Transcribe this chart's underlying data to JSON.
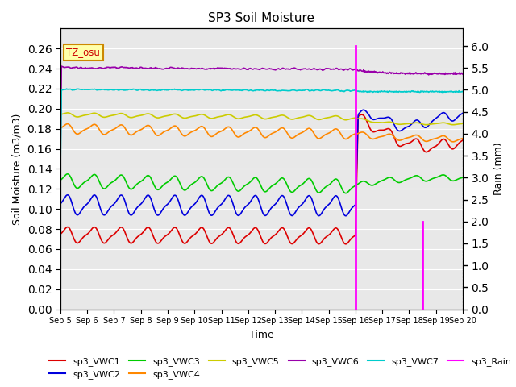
{
  "title": "SP3 Soil Moisture",
  "xlabel": "Time",
  "ylabel_left": "Soil Moisture (m3/m3)",
  "ylabel_right": "Rain (mm)",
  "ylim_left": [
    0.0,
    0.28
  ],
  "ylim_right": [
    0.0,
    6.4
  ],
  "yticks_left": [
    0.0,
    0.02,
    0.04,
    0.06,
    0.08,
    0.1,
    0.12,
    0.14,
    0.16,
    0.18,
    0.2,
    0.22,
    0.24,
    0.26
  ],
  "yticks_right": [
    0.0,
    0.5,
    1.0,
    1.5,
    2.0,
    2.5,
    3.0,
    3.5,
    4.0,
    4.5,
    5.0,
    5.5,
    6.0
  ],
  "xtick_labels": [
    "Sep 5",
    "Sep 6",
    "Sep 7",
    "Sep 8",
    "Sep 9",
    "Sep 10",
    "Sep 11",
    "Sep 12",
    "Sep 13",
    "Sep 14",
    "Sep 15",
    "Sep 16",
    "Sep 17",
    "Sep 18",
    "Sep 19",
    "Sep 20"
  ],
  "bg_color": "#e8e8e8",
  "colors": {
    "VWC1": "#dd0000",
    "VWC2": "#0000dd",
    "VWC3": "#00cc00",
    "VWC4": "#ff8800",
    "VWC5": "#cccc00",
    "VWC6": "#9900aa",
    "VWC7": "#00cccc",
    "Rain": "#ff00ff"
  }
}
